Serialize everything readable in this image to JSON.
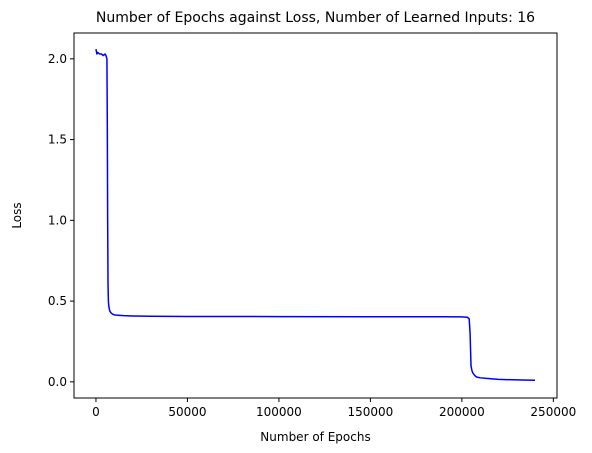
{
  "chart_data": {
    "type": "line",
    "title": "Number of Epochs against Loss, Number of Learned Inputs: 16",
    "xlabel": "Number of Epochs",
    "ylabel": "Loss",
    "xlim": [
      -12000,
      252000
    ],
    "ylim": [
      -0.1,
      2.16
    ],
    "xticks": [
      0,
      50000,
      100000,
      150000,
      200000,
      250000
    ],
    "xtick_labels": [
      "0",
      "50000",
      "100000",
      "150000",
      "200000",
      "250000"
    ],
    "yticks": [
      0.0,
      0.5,
      1.0,
      1.5,
      2.0
    ],
    "ytick_labels": [
      "0.0",
      "0.5",
      "1.0",
      "1.5",
      "2.0"
    ],
    "grid": false,
    "series": [
      {
        "color": "#0000ff",
        "x": [
          0,
          500,
          1000,
          2000,
          3000,
          4000,
          5000,
          5500,
          6000,
          6200,
          6400,
          6600,
          6800,
          7000,
          7500,
          8000,
          9000,
          10000,
          12000,
          15000,
          20000,
          30000,
          50000,
          100000,
          150000,
          190000,
          200000,
          203000,
          204000,
          204500,
          205000,
          205500,
          206000,
          207000,
          208000,
          210000,
          215000,
          220000,
          230000,
          240000
        ],
        "y": [
          2.06,
          2.03,
          2.04,
          2.03,
          2.03,
          2.02,
          2.03,
          2.02,
          2.0,
          1.6,
          1.0,
          0.6,
          0.5,
          0.47,
          0.44,
          0.43,
          0.42,
          0.415,
          0.412,
          0.41,
          0.408,
          0.406,
          0.405,
          0.404,
          0.403,
          0.403,
          0.402,
          0.4,
          0.39,
          0.3,
          0.1,
          0.07,
          0.055,
          0.04,
          0.03,
          0.025,
          0.02,
          0.015,
          0.012,
          0.01
        ]
      }
    ]
  }
}
